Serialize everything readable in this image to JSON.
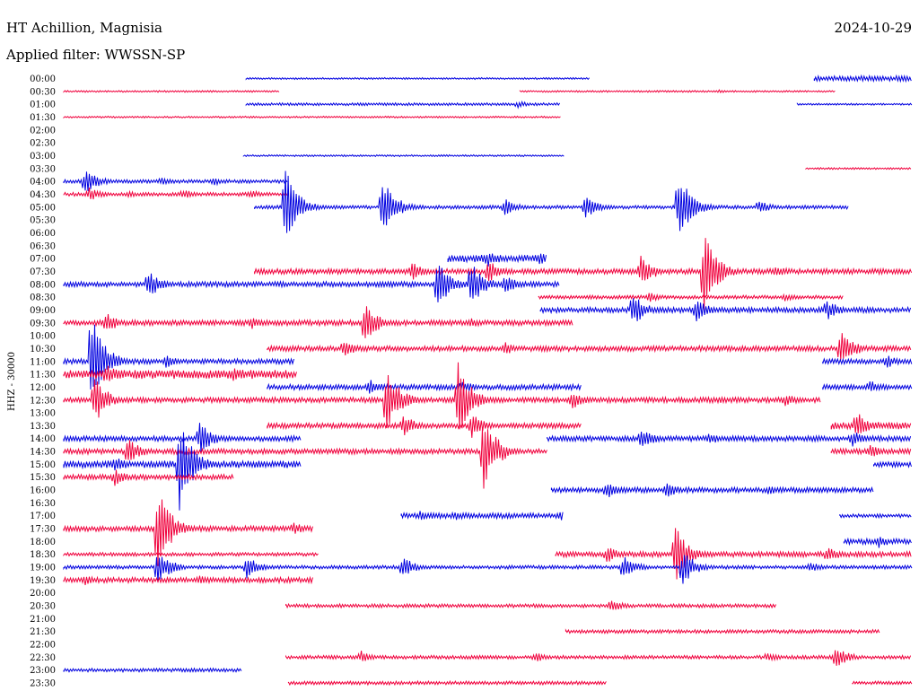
{
  "chart_data": {
    "type": "line",
    "title": "HT Achillion, Magnisia",
    "subtitle": "Applied filter: WWSSN-SP",
    "date": "2024-10-29",
    "ylabel": "HHZ - 30000",
    "xlabel": "",
    "grid": false,
    "legend": "none",
    "series_colors": [
      "#0000e0",
      "#f0003c"
    ],
    "rows": [
      {
        "label": "00:00",
        "color": "blue",
        "segments": [
          [
            0.215,
            0.62,
            1
          ],
          [
            0.885,
            1.0,
            3
          ]
        ],
        "events": []
      },
      {
        "label": "00:30",
        "color": "red",
        "segments": [
          [
            0.0,
            0.255,
            1
          ],
          [
            0.538,
            0.91,
            1
          ]
        ],
        "events": [
          [
            0.77,
            2
          ]
        ]
      },
      {
        "label": "01:00",
        "color": "blue",
        "segments": [
          [
            0.215,
            0.585,
            1.5
          ],
          [
            0.865,
            1.0,
            1
          ]
        ],
        "events": [
          [
            0.535,
            4
          ]
        ]
      },
      {
        "label": "01:30",
        "color": "red",
        "segments": [
          [
            0.0,
            0.587,
            1
          ]
        ],
        "events": []
      },
      {
        "label": "02:00",
        "color": "blue",
        "segments": [],
        "events": []
      },
      {
        "label": "02:30",
        "color": "red",
        "segments": [],
        "events": []
      },
      {
        "label": "03:00",
        "color": "blue",
        "segments": [
          [
            0.212,
            0.59,
            1
          ]
        ],
        "events": []
      },
      {
        "label": "03:30",
        "color": "red",
        "segments": [
          [
            0.875,
            1.0,
            1
          ]
        ],
        "events": []
      },
      {
        "label": "04:00",
        "color": "blue",
        "segments": [
          [
            0.0,
            0.265,
            2
          ]
        ],
        "events": [
          [
            0.025,
            16
          ],
          [
            0.115,
            6
          ],
          [
            0.175,
            5
          ]
        ]
      },
      {
        "label": "04:30",
        "color": "red",
        "segments": [
          [
            0.0,
            0.265,
            2
          ]
        ],
        "events": [
          [
            0.03,
            8
          ],
          [
            0.075,
            4
          ],
          [
            0.14,
            6
          ],
          [
            0.22,
            5
          ]
        ]
      },
      {
        "label": "05:00",
        "color": "blue",
        "segments": [
          [
            0.225,
            0.925,
            2
          ]
        ],
        "events": [
          [
            0.26,
            48
          ],
          [
            0.375,
            36
          ],
          [
            0.52,
            10
          ],
          [
            0.615,
            14
          ],
          [
            0.725,
            40
          ],
          [
            0.82,
            8
          ]
        ]
      },
      {
        "label": "05:30",
        "color": "red",
        "segments": [],
        "events": []
      },
      {
        "label": "06:00",
        "color": "blue",
        "segments": [],
        "events": []
      },
      {
        "label": "06:30",
        "color": "red",
        "segments": [],
        "events": []
      },
      {
        "label": "07:00",
        "color": "blue",
        "segments": [
          [
            0.453,
            0.57,
            4
          ]
        ],
        "events": [
          [
            0.5,
            10
          ],
          [
            0.56,
            8
          ]
        ]
      },
      {
        "label": "07:30",
        "color": "red",
        "segments": [
          [
            0.225,
            1.0,
            3
          ]
        ],
        "events": [
          [
            0.41,
            12
          ],
          [
            0.5,
            14
          ],
          [
            0.68,
            20
          ],
          [
            0.755,
            45
          ],
          [
            0.84,
            8
          ]
        ]
      },
      {
        "label": "08:00",
        "color": "blue",
        "segments": [
          [
            0.0,
            0.585,
            3
          ]
        ],
        "events": [
          [
            0.1,
            16
          ],
          [
            0.44,
            30
          ],
          [
            0.48,
            26
          ],
          [
            0.52,
            12
          ]
        ]
      },
      {
        "label": "08:30",
        "color": "red",
        "segments": [
          [
            0.56,
            0.92,
            2
          ]
        ],
        "events": [
          [
            0.69,
            6
          ],
          [
            0.85,
            5
          ]
        ]
      },
      {
        "label": "09:00",
        "color": "blue",
        "segments": [
          [
            0.562,
            1.0,
            3
          ]
        ],
        "events": [
          [
            0.67,
            20
          ],
          [
            0.745,
            14
          ],
          [
            0.9,
            12
          ]
        ]
      },
      {
        "label": "09:30",
        "color": "red",
        "segments": [
          [
            0.0,
            0.6,
            3
          ]
        ],
        "events": [
          [
            0.05,
            12
          ],
          [
            0.22,
            8
          ],
          [
            0.355,
            24
          ],
          [
            0.48,
            6
          ]
        ]
      },
      {
        "label": "10:00",
        "color": "blue",
        "segments": [],
        "events": []
      },
      {
        "label": "10:30",
        "color": "red",
        "segments": [
          [
            0.24,
            1.0,
            3
          ]
        ],
        "events": [
          [
            0.33,
            10
          ],
          [
            0.52,
            8
          ],
          [
            0.915,
            24
          ]
        ]
      },
      {
        "label": "11:00",
        "color": "blue",
        "segments": [
          [
            0.0,
            0.272,
            3
          ],
          [
            0.895,
            1.0,
            3
          ]
        ],
        "events": [
          [
            0.032,
            60
          ],
          [
            0.12,
            8
          ],
          [
            0.97,
            8
          ]
        ]
      },
      {
        "label": "11:30",
        "color": "red",
        "segments": [
          [
            0.0,
            0.275,
            5
          ]
        ],
        "events": [
          [
            0.05,
            12
          ],
          [
            0.2,
            8
          ]
        ]
      },
      {
        "label": "12:00",
        "color": "blue",
        "segments": [
          [
            0.24,
            0.61,
            3
          ],
          [
            0.895,
            1.0,
            3
          ]
        ],
        "events": [
          [
            0.36,
            10
          ],
          [
            0.47,
            8
          ],
          [
            0.95,
            8
          ]
        ]
      },
      {
        "label": "12:30",
        "color": "red",
        "segments": [
          [
            0.0,
            0.893,
            3
          ]
        ],
        "events": [
          [
            0.035,
            30
          ],
          [
            0.38,
            40
          ],
          [
            0.465,
            44
          ],
          [
            0.6,
            10
          ],
          [
            0.85,
            8
          ]
        ]
      },
      {
        "label": "13:00",
        "color": "blue",
        "segments": [],
        "events": []
      },
      {
        "label": "13:30",
        "color": "red",
        "segments": [
          [
            0.24,
            0.61,
            3
          ],
          [
            0.905,
            1.0,
            4
          ]
        ],
        "events": [
          [
            0.4,
            14
          ],
          [
            0.48,
            16
          ],
          [
            0.935,
            16
          ]
        ]
      },
      {
        "label": "14:00",
        "color": "blue",
        "segments": [
          [
            0.0,
            0.28,
            3
          ],
          [
            0.57,
            1.0,
            3
          ]
        ],
        "events": [
          [
            0.16,
            20
          ],
          [
            0.68,
            14
          ],
          [
            0.76,
            8
          ],
          [
            0.93,
            10
          ]
        ]
      },
      {
        "label": "14:30",
        "color": "red",
        "segments": [
          [
            0.0,
            0.57,
            3
          ],
          [
            0.905,
            1.0,
            3
          ]
        ],
        "events": [
          [
            0.075,
            16
          ],
          [
            0.495,
            46
          ],
          [
            0.95,
            8
          ]
        ]
      },
      {
        "label": "15:00",
        "color": "blue",
        "segments": [
          [
            0.0,
            0.28,
            4
          ],
          [
            0.955,
            1.0,
            3
          ]
        ],
        "events": [
          [
            0.135,
            60
          ],
          [
            0.06,
            10
          ]
        ]
      },
      {
        "label": "15:30",
        "color": "red",
        "segments": [
          [
            0.0,
            0.2,
            3
          ]
        ],
        "events": [
          [
            0.06,
            10
          ]
        ]
      },
      {
        "label": "16:00",
        "color": "blue",
        "segments": [
          [
            0.575,
            0.955,
            3
          ]
        ],
        "events": [
          [
            0.64,
            10
          ],
          [
            0.71,
            10
          ],
          [
            0.83,
            6
          ]
        ]
      },
      {
        "label": "16:30",
        "color": "red",
        "segments": [],
        "events": []
      },
      {
        "label": "17:00",
        "color": "blue",
        "segments": [
          [
            0.398,
            0.59,
            3
          ],
          [
            0.915,
            1.0,
            2
          ]
        ],
        "events": [
          [
            0.42,
            6
          ],
          [
            0.46,
            6
          ],
          [
            0.585,
            6
          ]
        ]
      },
      {
        "label": "17:30",
        "color": "red",
        "segments": [
          [
            0.0,
            0.295,
            3
          ]
        ],
        "events": [
          [
            0.11,
            52
          ],
          [
            0.27,
            8
          ]
        ]
      },
      {
        "label": "18:00",
        "color": "blue",
        "segments": [
          [
            0.92,
            1.0,
            3
          ]
        ],
        "events": [
          [
            0.96,
            8
          ]
        ]
      },
      {
        "label": "18:30",
        "color": "red",
        "segments": [
          [
            0.0,
            0.3,
            2
          ],
          [
            0.58,
            1.0,
            3
          ]
        ],
        "events": [
          [
            0.72,
            36
          ],
          [
            0.64,
            10
          ],
          [
            0.9,
            10
          ]
        ]
      },
      {
        "label": "19:00",
        "color": "blue",
        "segments": [
          [
            0.0,
            1.0,
            2
          ]
        ],
        "events": [
          [
            0.11,
            22
          ],
          [
            0.215,
            14
          ],
          [
            0.4,
            12
          ],
          [
            0.66,
            14
          ],
          [
            0.73,
            20
          ],
          [
            0.88,
            6
          ]
        ]
      },
      {
        "label": "19:30",
        "color": "red",
        "segments": [
          [
            0.0,
            0.295,
            3
          ]
        ],
        "events": [
          [
            0.025,
            6
          ],
          [
            0.16,
            6
          ]
        ]
      },
      {
        "label": "20:00",
        "color": "blue",
        "segments": [],
        "events": []
      },
      {
        "label": "20:30",
        "color": "red",
        "segments": [
          [
            0.262,
            0.84,
            2
          ]
        ],
        "events": [
          [
            0.645,
            8
          ]
        ]
      },
      {
        "label": "21:00",
        "color": "blue",
        "segments": [],
        "events": []
      },
      {
        "label": "21:30",
        "color": "red",
        "segments": [
          [
            0.592,
            0.963,
            2
          ]
        ],
        "events": []
      },
      {
        "label": "22:00",
        "color": "blue",
        "segments": [],
        "events": []
      },
      {
        "label": "22:30",
        "color": "red",
        "segments": [
          [
            0.262,
            1.0,
            2
          ]
        ],
        "events": [
          [
            0.35,
            8
          ],
          [
            0.555,
            6
          ],
          [
            0.83,
            6
          ],
          [
            0.91,
            14
          ]
        ]
      },
      {
        "label": "23:00",
        "color": "blue",
        "segments": [
          [
            0.0,
            0.21,
            2
          ]
        ],
        "events": []
      },
      {
        "label": "23:30",
        "color": "red",
        "segments": [
          [
            0.265,
            0.64,
            2
          ],
          [
            0.93,
            1.0,
            2
          ]
        ],
        "events": []
      }
    ]
  }
}
